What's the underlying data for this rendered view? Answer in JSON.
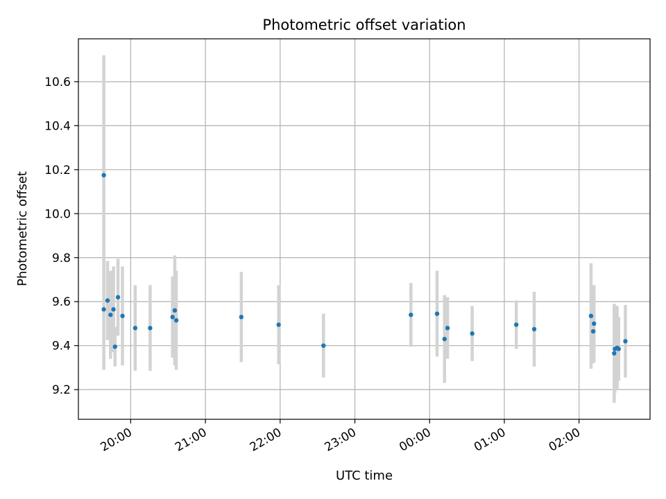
{
  "chart_data": {
    "type": "scatter",
    "title": "Photometric offset variation",
    "xlabel": "UTC time",
    "ylabel": "Photometric offset",
    "x_unit": "hours since 00:00 UTC (negative = previous evening)",
    "xlim": [
      -4.7,
      2.95
    ],
    "ylim": [
      9.065,
      10.795
    ],
    "grid": true,
    "x_ticks": [
      {
        "value": -4,
        "label": "20:00"
      },
      {
        "value": -3,
        "label": "21:00"
      },
      {
        "value": -2,
        "label": "22:00"
      },
      {
        "value": -1,
        "label": "23:00"
      },
      {
        "value": 0,
        "label": "00:00"
      },
      {
        "value": 1,
        "label": "01:00"
      },
      {
        "value": 2,
        "label": "02:00"
      }
    ],
    "y_ticks": [
      {
        "value": 9.2,
        "label": "9.2"
      },
      {
        "value": 9.4,
        "label": "9.4"
      },
      {
        "value": 9.6,
        "label": "9.6"
      },
      {
        "value": 9.8,
        "label": "9.8"
      },
      {
        "value": 10.0,
        "label": "10.0"
      },
      {
        "value": 10.2,
        "label": "10.2"
      },
      {
        "value": 10.4,
        "label": "10.4"
      },
      {
        "value": 10.6,
        "label": "10.6"
      }
    ],
    "marker_color": "#1f77b4",
    "errorbar_color": "#d3d3d3",
    "points": [
      {
        "x": -4.36,
        "y": 10.175,
        "err": 0.545
      },
      {
        "x": -4.36,
        "y": 9.565,
        "err": 0.275
      },
      {
        "x": -4.31,
        "y": 9.605,
        "err": 0.18
      },
      {
        "x": -4.27,
        "y": 9.54,
        "err": 0.2
      },
      {
        "x": -4.23,
        "y": 9.565,
        "err": 0.195
      },
      {
        "x": -4.21,
        "y": 9.395,
        "err": 0.09
      },
      {
        "x": -4.17,
        "y": 9.62,
        "err": 0.175
      },
      {
        "x": -4.11,
        "y": 9.535,
        "err": 0.225
      },
      {
        "x": -3.94,
        "y": 9.48,
        "err": 0.195
      },
      {
        "x": -3.74,
        "y": 9.48,
        "err": 0.195
      },
      {
        "x": -3.44,
        "y": 9.53,
        "err": 0.185
      },
      {
        "x": -3.41,
        "y": 9.56,
        "err": 0.25
      },
      {
        "x": -3.39,
        "y": 9.515,
        "err": 0.225
      },
      {
        "x": -2.52,
        "y": 9.53,
        "err": 0.205
      },
      {
        "x": -2.02,
        "y": 9.495,
        "err": 0.18
      },
      {
        "x": -1.42,
        "y": 9.4,
        "err": 0.145
      },
      {
        "x": -0.25,
        "y": 9.54,
        "err": 0.145
      },
      {
        "x": 0.1,
        "y": 9.545,
        "err": 0.195
      },
      {
        "x": 0.2,
        "y": 9.43,
        "err": 0.2
      },
      {
        "x": 0.24,
        "y": 9.48,
        "err": 0.14
      },
      {
        "x": 0.57,
        "y": 9.455,
        "err": 0.125
      },
      {
        "x": 1.16,
        "y": 9.495,
        "err": 0.11
      },
      {
        "x": 1.4,
        "y": 9.475,
        "err": 0.17
      },
      {
        "x": 2.16,
        "y": 9.535,
        "err": 0.24
      },
      {
        "x": 2.2,
        "y": 9.5,
        "err": 0.175
      },
      {
        "x": 2.19,
        "y": 9.465,
        "err": 0.145
      },
      {
        "x": 2.47,
        "y": 9.365,
        "err": 0.225
      },
      {
        "x": 2.48,
        "y": 9.385,
        "err": 0.2
      },
      {
        "x": 2.51,
        "y": 9.39,
        "err": 0.19
      },
      {
        "x": 2.53,
        "y": 9.385,
        "err": 0.145
      },
      {
        "x": 2.62,
        "y": 9.42,
        "err": 0.165
      }
    ]
  }
}
